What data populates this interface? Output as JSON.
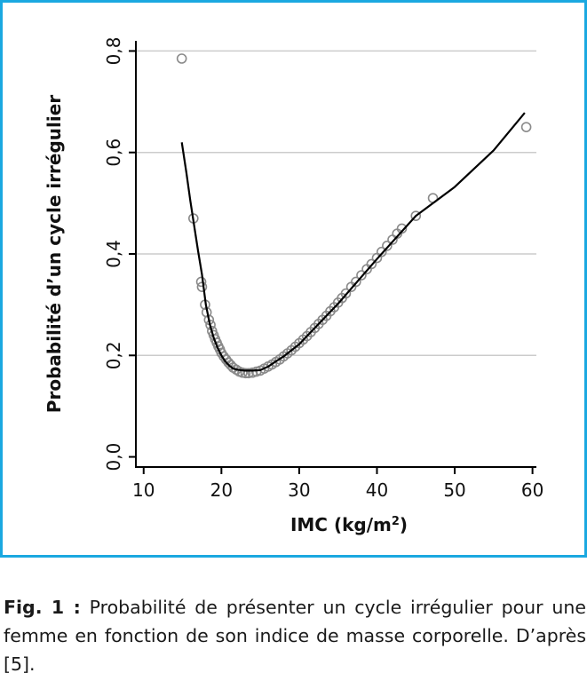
{
  "colors": {
    "frame": "#1aa8e0",
    "grid": "#cccccc",
    "points": "#8a8a8a",
    "curve": "#000000"
  },
  "chart_data": {
    "type": "scatter",
    "title": "",
    "xlabel": "IMC (kg/m",
    "xlabel_sup": "2",
    "xlabel_end": ")",
    "ylabel": "Probabilité d’un cycle irrégulier",
    "xlim": [
      9,
      60.5
    ],
    "ylim": [
      -0.02,
      0.82
    ],
    "x_ticks": [
      10,
      20,
      30,
      40,
      50,
      60
    ],
    "y_ticks": [
      0.0,
      0.2,
      0.4,
      0.6,
      0.8
    ],
    "x_tick_labels": [
      "10",
      "20",
      "30",
      "40",
      "50",
      "60"
    ],
    "y_tick_labels": [
      "0,0",
      "0,2",
      "0,4",
      "0,6",
      "0,8"
    ],
    "grid": "horizontal",
    "series": [
      {
        "kind": "points",
        "points": [
          [
            14.9,
            0.785
          ],
          [
            16.4,
            0.47
          ],
          [
            17.4,
            0.345
          ],
          [
            17.5,
            0.335
          ],
          [
            17.9,
            0.3
          ],
          [
            18.1,
            0.285
          ],
          [
            18.4,
            0.27
          ],
          [
            18.6,
            0.26
          ],
          [
            18.8,
            0.248
          ],
          [
            19.0,
            0.24
          ],
          [
            19.2,
            0.232
          ],
          [
            19.4,
            0.225
          ],
          [
            19.6,
            0.218
          ],
          [
            19.8,
            0.212
          ],
          [
            20.0,
            0.205
          ],
          [
            20.3,
            0.198
          ],
          [
            20.6,
            0.192
          ],
          [
            20.9,
            0.186
          ],
          [
            21.2,
            0.181
          ],
          [
            21.5,
            0.176
          ],
          [
            21.9,
            0.172
          ],
          [
            22.3,
            0.168
          ],
          [
            22.7,
            0.166
          ],
          [
            23.1,
            0.165
          ],
          [
            23.5,
            0.165
          ],
          [
            24.0,
            0.166
          ],
          [
            24.5,
            0.168
          ],
          [
            25.0,
            0.17
          ],
          [
            25.5,
            0.174
          ],
          [
            26.0,
            0.178
          ],
          [
            26.5,
            0.182
          ],
          [
            27.0,
            0.187
          ],
          [
            27.5,
            0.192
          ],
          [
            28.0,
            0.198
          ],
          [
            28.5,
            0.204
          ],
          [
            29.0,
            0.21
          ],
          [
            29.5,
            0.217
          ],
          [
            30.0,
            0.224
          ],
          [
            30.5,
            0.231
          ],
          [
            31.0,
            0.238
          ],
          [
            31.5,
            0.246
          ],
          [
            32.0,
            0.254
          ],
          [
            32.5,
            0.262
          ],
          [
            33.0,
            0.27
          ],
          [
            33.5,
            0.278
          ],
          [
            34.0,
            0.287
          ],
          [
            34.5,
            0.295
          ],
          [
            35.0,
            0.304
          ],
          [
            35.5,
            0.313
          ],
          [
            36.0,
            0.322
          ],
          [
            36.7,
            0.335
          ],
          [
            37.3,
            0.345
          ],
          [
            38.0,
            0.358
          ],
          [
            38.7,
            0.37
          ],
          [
            39.3,
            0.38
          ],
          [
            40.0,
            0.392
          ],
          [
            40.6,
            0.404
          ],
          [
            41.3,
            0.416
          ],
          [
            42.0,
            0.428
          ],
          [
            42.6,
            0.44
          ],
          [
            43.2,
            0.45
          ],
          [
            45.0,
            0.475
          ],
          [
            47.2,
            0.51
          ],
          [
            59.2,
            0.65
          ]
        ]
      },
      {
        "kind": "fit-curve",
        "points": [
          [
            14.9,
            0.62
          ],
          [
            15.5,
            0.56
          ],
          [
            16.0,
            0.505
          ],
          [
            16.5,
            0.455
          ],
          [
            17.0,
            0.405
          ],
          [
            17.5,
            0.36
          ],
          [
            18.0,
            0.3
          ],
          [
            18.5,
            0.262
          ],
          [
            19.0,
            0.235
          ],
          [
            19.5,
            0.215
          ],
          [
            20.0,
            0.2
          ],
          [
            20.5,
            0.188
          ],
          [
            21.0,
            0.18
          ],
          [
            21.5,
            0.174
          ],
          [
            22.0,
            0.172
          ],
          [
            23.0,
            0.17
          ],
          [
            24.0,
            0.17
          ],
          [
            25.0,
            0.171
          ],
          [
            26.0,
            0.178
          ],
          [
            27.0,
            0.188
          ],
          [
            28.0,
            0.198
          ],
          [
            29.0,
            0.21
          ],
          [
            30.0,
            0.222
          ],
          [
            35.0,
            0.302
          ],
          [
            40.0,
            0.39
          ],
          [
            45.0,
            0.475
          ],
          [
            50.0,
            0.532
          ],
          [
            55.0,
            0.604
          ],
          [
            59.0,
            0.678
          ]
        ]
      }
    ]
  },
  "caption": {
    "lead": "Fig. 1 :",
    "text": " Probabilité de présenter un cycle irrégulier pour une femme en fonction de son indice de masse corporelle. D’après [5]."
  }
}
